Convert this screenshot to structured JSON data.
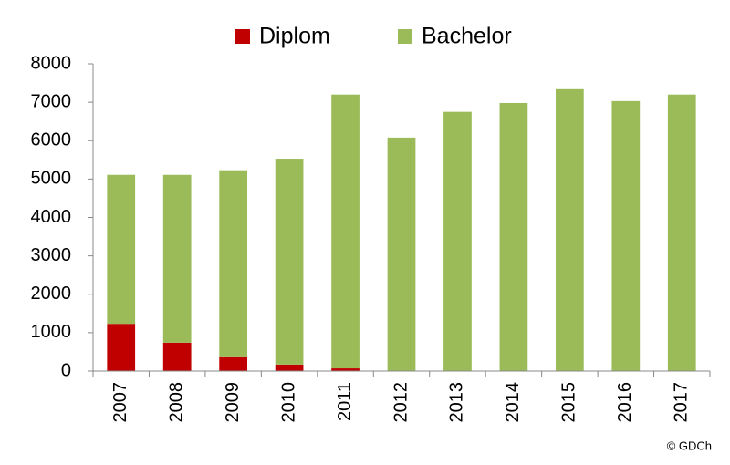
{
  "chart_data": {
    "type": "stacked_bar",
    "categories": [
      "2007",
      "2008",
      "2009",
      "2010",
      "2011",
      "2012",
      "2013",
      "2014",
      "2015",
      "2016",
      "2017"
    ],
    "series": [
      {
        "name": "Diplom",
        "color": "#c00000",
        "values": [
          1230,
          740,
          360,
          170,
          70,
          0,
          0,
          0,
          0,
          0,
          0
        ]
      },
      {
        "name": "Bachelor",
        "color": "#9bbb59",
        "values": [
          3880,
          4370,
          4870,
          5360,
          7130,
          6080,
          6750,
          6980,
          7340,
          7030,
          7200
        ]
      }
    ],
    "ylim": [
      0,
      8000
    ],
    "yticks": [
      0,
      1000,
      2000,
      3000,
      4000,
      5000,
      6000,
      7000,
      8000
    ],
    "grid": false,
    "legend": "top",
    "annotation": "© GDCh"
  }
}
